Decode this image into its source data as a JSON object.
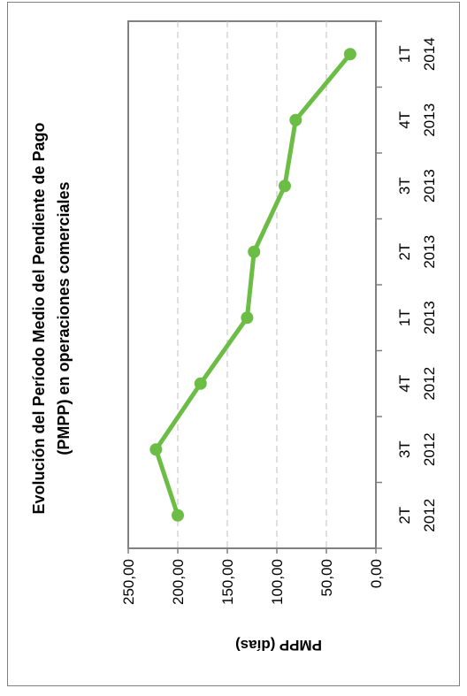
{
  "chart_data": {
    "type": "line",
    "title": "Evolución del Período Medio del Pendiente de Pago (PMPP) en operaciones comerciales",
    "title_lines": [
      "Evolución del Período Medio del Pendiente de Pago",
      "(PMPP) en operaciones comerciales"
    ],
    "xlabel": "",
    "ylabel": "PMPP (días)",
    "categories": [
      [
        "2T",
        "2012"
      ],
      [
        "3T",
        "2012"
      ],
      [
        "4T",
        "2012"
      ],
      [
        "1T",
        "2013"
      ],
      [
        "2T",
        "2013"
      ],
      [
        "3T",
        "2013"
      ],
      [
        "4T",
        "2013"
      ],
      [
        "1T",
        "2014"
      ]
    ],
    "series": [
      {
        "values": [
          200,
          222,
          177,
          130,
          123,
          92,
          81,
          26
        ]
      }
    ],
    "ylim": [
      0,
      250
    ],
    "yticks": [
      "0,00",
      "50,00",
      "100,00",
      "150,00",
      "200,00",
      "250,00"
    ],
    "grid": true,
    "orientation": "rotated-90-ccw",
    "colors": {
      "line": "#6cbd45",
      "grid": "#bfbfbf",
      "plot_border": "#808080"
    }
  }
}
